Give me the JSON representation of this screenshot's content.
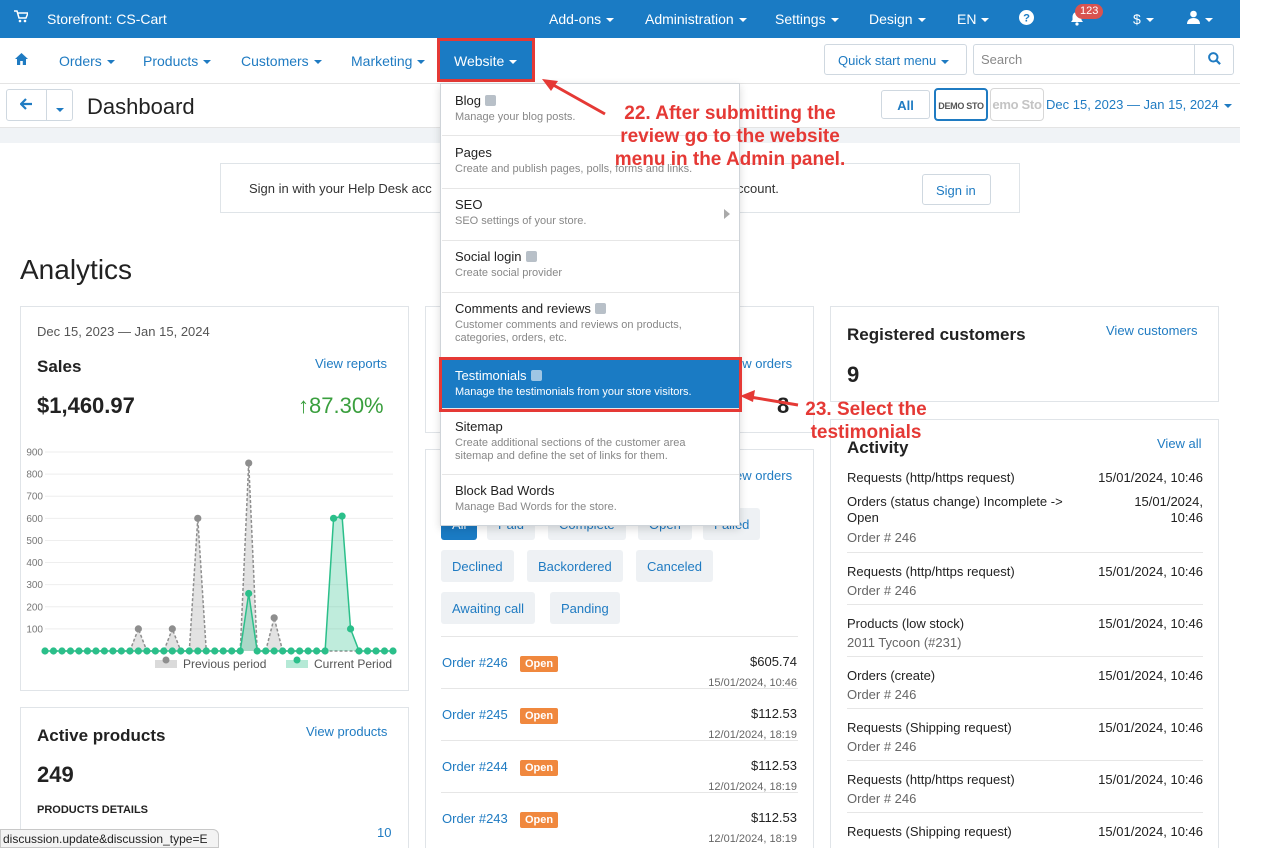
{
  "topbar": {
    "store_name": "Storefront: CS-Cart",
    "menu": [
      "Add-ons",
      "Administration",
      "Settings",
      "Design",
      "EN"
    ],
    "notifications_count": "123",
    "currency": "$"
  },
  "navbar": {
    "items": [
      "Orders",
      "Products",
      "Customers",
      "Marketing"
    ],
    "website_label": "Website",
    "quick_start_label": "Quick start menu",
    "search_placeholder": "Search"
  },
  "titlebar": {
    "title": "Dashboard",
    "all_label": "All",
    "store_logo_1": "DEMO STO",
    "store_logo_2": "emo Sto",
    "date_range": "Dec 15, 2023 — Jan 15, 2024"
  },
  "helpdesk": {
    "text_left": "Sign in with your Help Desk acc",
    "text_right": "ccount.",
    "button": "Sign in"
  },
  "analytics_title": "Analytics",
  "sales": {
    "date_range": "Dec 15, 2023 — Jan 15, 2024",
    "title": "Sales",
    "link": "View reports",
    "amount": "$1,460.97",
    "change": "↑87.30%",
    "legend_previous": "Previous period",
    "legend_current": "Current Period"
  },
  "chart_data": {
    "type": "area",
    "ylim": [
      0,
      900
    ],
    "yticks": [
      100,
      200,
      300,
      400,
      500,
      600,
      700,
      800,
      900
    ],
    "grid": true,
    "legend_position": "bottom-right",
    "colors": {
      "previous": "#8e8e8e",
      "current": "#2bbf8a"
    },
    "series": [
      {
        "name": "Previous period",
        "values": [
          0,
          0,
          0,
          0,
          0,
          0,
          0,
          0,
          0,
          0,
          0,
          100,
          0,
          0,
          0,
          100,
          0,
          0,
          600,
          0,
          0,
          0,
          0,
          0,
          850,
          0,
          0,
          150,
          0,
          0,
          0,
          0,
          0,
          0,
          0,
          0,
          0,
          0,
          0,
          0,
          0,
          0
        ]
      },
      {
        "name": "Current Period",
        "values": [
          0,
          0,
          0,
          0,
          0,
          0,
          0,
          0,
          0,
          0,
          0,
          0,
          0,
          0,
          0,
          0,
          0,
          0,
          0,
          0,
          0,
          0,
          0,
          0,
          260,
          0,
          0,
          0,
          0,
          0,
          0,
          0,
          0,
          0,
          600,
          610,
          100,
          0,
          0,
          0,
          0,
          0
        ]
      }
    ]
  },
  "active_products": {
    "title": "Active products",
    "link": "View products",
    "count": "249",
    "details_label": "PRODUCTS DETAILS",
    "out_of_stock_count": "10"
  },
  "orders_card": {
    "link_top": "ew orders",
    "value_partial": "8",
    "link_mid": "ew orders",
    "filters_row1_partial": [
      "All",
      "Paid",
      "Complete",
      "Open",
      "Failed"
    ],
    "filters": [
      "Declined",
      "Backordered",
      "Canceled",
      "Awaiting call",
      "Panding"
    ],
    "orders": [
      {
        "id": "Order #246",
        "status": "Open",
        "amount": "$605.74",
        "date": "15/01/2024, 10:46"
      },
      {
        "id": "Order #245",
        "status": "Open",
        "amount": "$112.53",
        "date": "12/01/2024, 18:19"
      },
      {
        "id": "Order #244",
        "status": "Open",
        "amount": "$112.53",
        "date": "12/01/2024, 18:19"
      },
      {
        "id": "Order #243",
        "status": "Open",
        "amount": "$112.53",
        "date": "12/01/2024, 18:19"
      }
    ]
  },
  "registered": {
    "title": "Registered customers",
    "link": "View customers",
    "count": "9"
  },
  "activity": {
    "title": "Activity",
    "link": "View all",
    "items": [
      {
        "title": "Requests (http/https request)",
        "date": "15/01/2024, 10:46",
        "sub": ""
      },
      {
        "title": "Orders (status change) Incomplete -> Open",
        "date": "15/01/2024, 10:46",
        "sub": "Order # 246"
      },
      {
        "title": "Requests (http/https request)",
        "date": "15/01/2024, 10:46",
        "sub": "Order # 246"
      },
      {
        "title": "Products (low stock)",
        "date": "15/01/2024, 10:46",
        "sub": "2011 Tycoon (#231)"
      },
      {
        "title": "Orders (create)",
        "date": "15/01/2024, 10:46",
        "sub": "Order # 246"
      },
      {
        "title": "Requests (Shipping request)",
        "date": "15/01/2024, 10:46",
        "sub": "Order # 246"
      },
      {
        "title": "Requests (http/https request)",
        "date": "15/01/2024, 10:46",
        "sub": "Order # 246"
      },
      {
        "title": "Requests (Shipping request)",
        "date": "15/01/2024, 10:46",
        "sub": ""
      }
    ]
  },
  "dropdown": {
    "items": [
      {
        "title": "Blog",
        "desc": "Manage your blog posts."
      },
      {
        "title": "Pages",
        "desc": "Create and publish pages, polls, forms and links."
      },
      {
        "title": "SEO",
        "desc": "SEO settings of your store."
      },
      {
        "title": "Social login",
        "desc": "Create social provider"
      },
      {
        "title": "Comments and reviews",
        "desc": "Customer comments and reviews on products, categories, orders, etc."
      },
      {
        "title": "Testimonials",
        "desc": "Manage the testimonials from your store visitors."
      },
      {
        "title": "Sitemap",
        "desc": "Create additional sections of the customer area sitemap and define the set of links for them."
      },
      {
        "title": "Block Bad Words",
        "desc": "Manage Bad Words for the store."
      }
    ]
  },
  "annotations": {
    "step22": "22. After submitting the review go to the website menu in the Admin panel.",
    "step23": "23. Select the testimonials"
  },
  "statusbar": "discussion.update&discussion_type=E"
}
